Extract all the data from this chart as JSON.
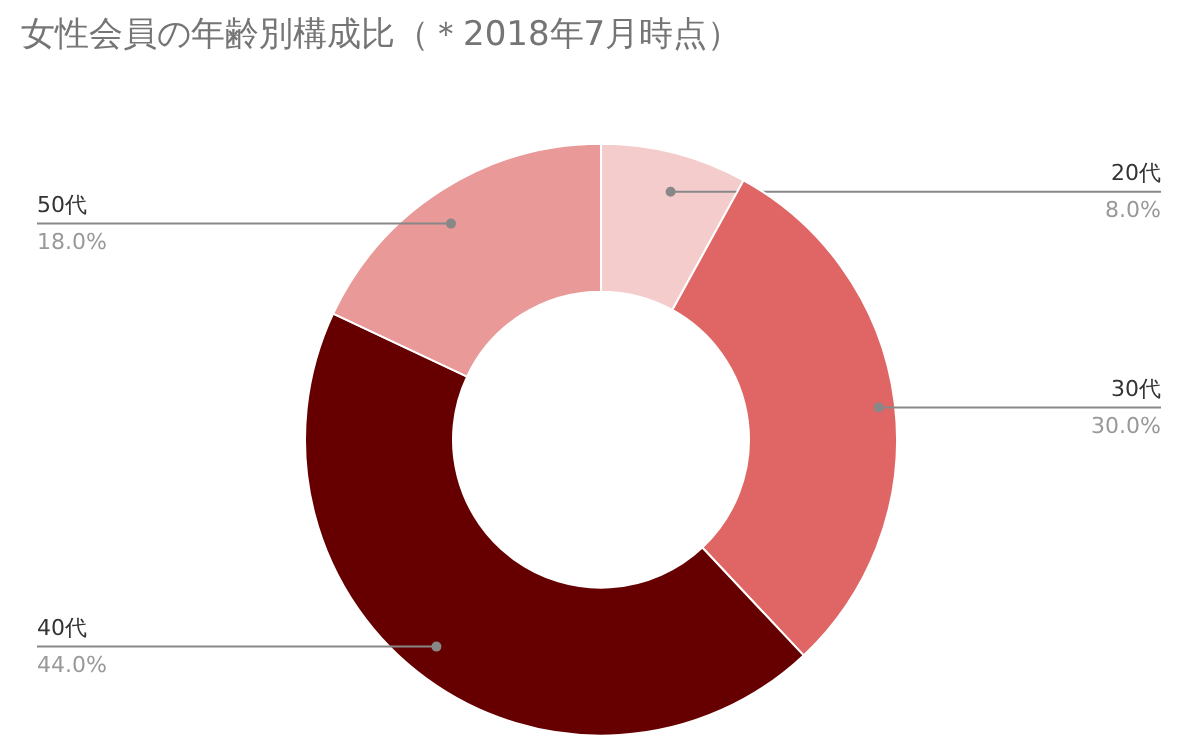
{
  "chart_data": {
    "type": "donut",
    "title": "女性会員の年齢別構成比（＊2018年7月時点）",
    "categories": [
      "20代",
      "30代",
      "40代",
      "50代"
    ],
    "values": [
      8,
      30,
      44,
      18
    ],
    "colors": [
      "#f4cccc",
      "#e06666",
      "#660000",
      "#ea9999"
    ],
    "value_labels": [
      "8.0%",
      "30.0%",
      "44.0%",
      "18.0%"
    ]
  }
}
